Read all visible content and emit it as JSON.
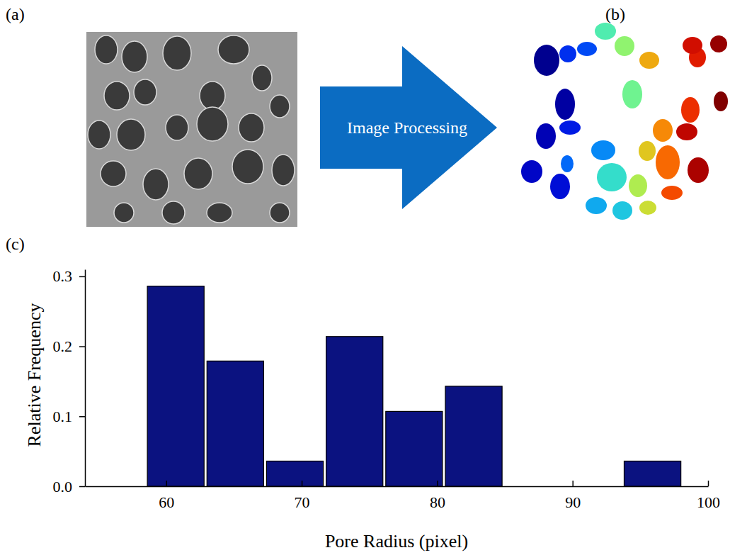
{
  "panel_labels": [
    "(a)",
    "(b)",
    "(c)"
  ],
  "arrow_label": "Image Processing",
  "chart_data": {
    "type": "histogram",
    "x_label": "Pore Radius (pixel)",
    "y_label": "Relative Frequency",
    "bins": [
      58.5,
      62.9,
      67.3,
      71.7,
      76.1,
      80.5,
      84.9,
      89.3,
      93.7,
      98.1
    ],
    "values": [
      0.286,
      0.179,
      0.036,
      0.214,
      0.107,
      0.143,
      0,
      0,
      0.036
    ],
    "color": "#0b1280",
    "xlim": [
      54,
      100
    ],
    "xticks": [
      60,
      70,
      80,
      90,
      100
    ],
    "ylim": [
      0,
      0.31
    ],
    "yticks": [
      {
        "value": 0,
        "label": "0.0"
      },
      0.1,
      0.2,
      0.3
    ]
  }
}
